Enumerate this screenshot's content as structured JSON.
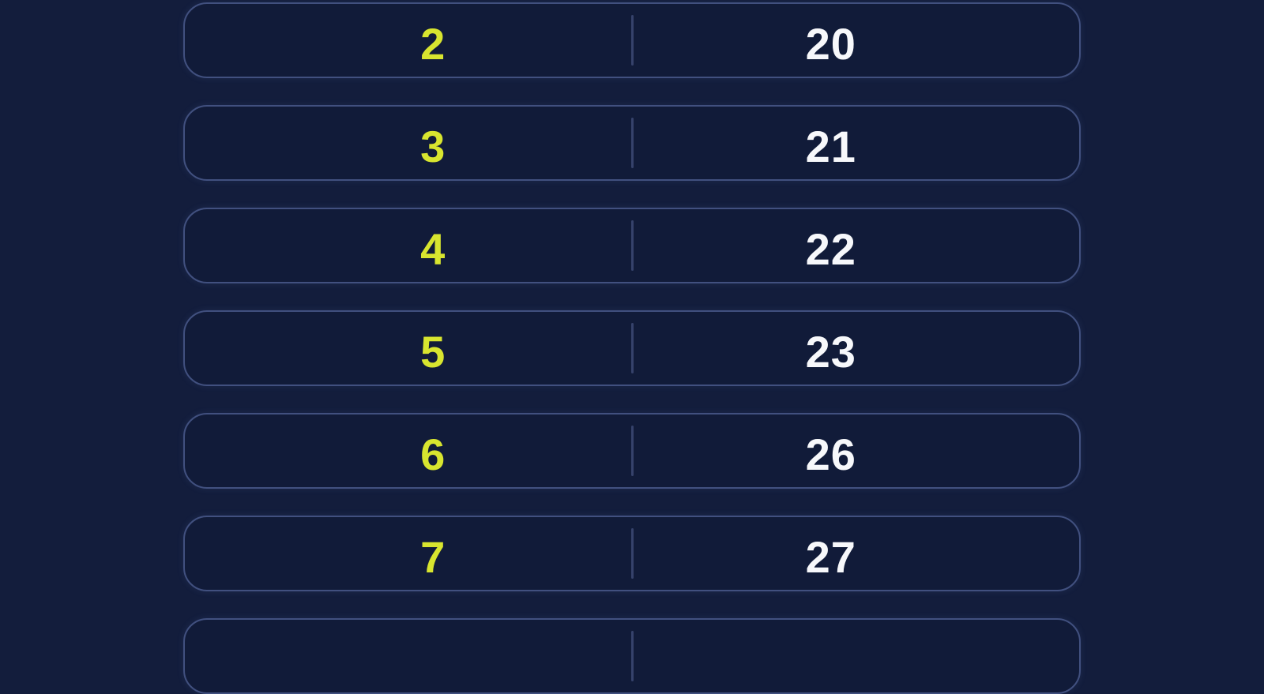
{
  "theme": {
    "page_bg": "#131d3c",
    "row_bg": "#111b39",
    "row_border": "#41507f",
    "divider": "#36426b",
    "accent_yellow": "#d8e52f",
    "text_white": "#f7f8fb"
  },
  "table": {
    "rows": [
      {
        "left": "2",
        "right": "20"
      },
      {
        "left": "3",
        "right": "21"
      },
      {
        "left": "4",
        "right": "22"
      },
      {
        "left": "5",
        "right": "23"
      },
      {
        "left": "6",
        "right": "26"
      },
      {
        "left": "7",
        "right": "27"
      },
      {
        "left": "",
        "right": ""
      }
    ]
  }
}
